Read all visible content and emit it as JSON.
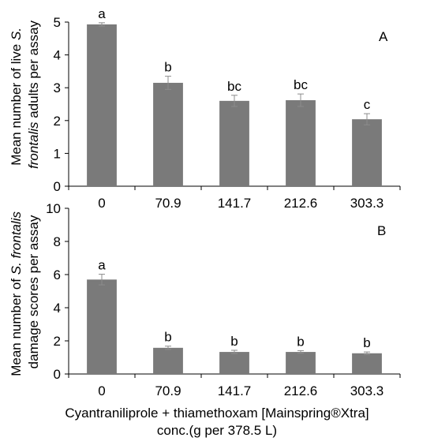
{
  "chart_data": [
    {
      "type": "bar",
      "panel_label": "A",
      "ylabel_lines": [
        "Mean number of live S.",
        "frontalis adults per assay"
      ],
      "categories": [
        "0",
        "70.9",
        "141.7",
        "212.6",
        "303.3"
      ],
      "values": [
        4.93,
        3.15,
        2.6,
        2.62,
        2.04
      ],
      "errors": [
        0.05,
        0.2,
        0.17,
        0.19,
        0.17
      ],
      "significance_letters": [
        "a",
        "b",
        "bc",
        "bc",
        "c"
      ],
      "ylim": [
        0,
        5
      ],
      "yticks": [
        0,
        1,
        2,
        3,
        4,
        5
      ],
      "bar_color": "#7a7a7a",
      "error_bar_color": "#8c8c8c",
      "grid": false
    },
    {
      "type": "bar",
      "panel_label": "B",
      "ylabel_lines": [
        "Mean number of S. frontalis",
        "damage scores per assay"
      ],
      "categories": [
        "0",
        "70.9",
        "141.7",
        "212.6",
        "303.3"
      ],
      "values": [
        5.7,
        1.58,
        1.33,
        1.33,
        1.25
      ],
      "errors": [
        0.32,
        0.1,
        0.1,
        0.08,
        0.08
      ],
      "significance_letters": [
        "a",
        "b",
        "b",
        "b",
        "b"
      ],
      "ylim": [
        0,
        10
      ],
      "yticks": [
        0,
        2,
        4,
        6,
        8,
        10
      ],
      "bar_color": "#7a7a7a",
      "error_bar_color": "#8c8c8c",
      "grid": false
    }
  ],
  "xlabel_lines": [
    "Cyantraniliprole + thiamethoxam [Mainspring®Xtra]",
    "conc.(g per 378.5 L)"
  ]
}
